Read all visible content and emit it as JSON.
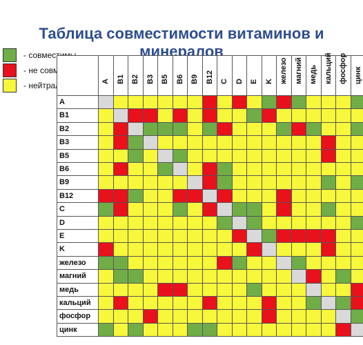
{
  "title": "Таблица совместимости витаминов и минералов",
  "legend": [
    {
      "label": "- совместимы",
      "color": "#70ad47"
    },
    {
      "label": "- не совместимы",
      "color": "#e8111c"
    },
    {
      "label": "- нейтральны",
      "color": "#f7f73b"
    }
  ],
  "colors": {
    "g": "#70ad47",
    "r": "#e8111c",
    "y": "#f7f73b",
    "x": "#d9d9d9"
  },
  "columns": [
    "A",
    "B1",
    "B2",
    "B3",
    "B5",
    "B6",
    "B9",
    "B12",
    "C",
    "D",
    "E",
    "K",
    "железо",
    "магний",
    "медь",
    "кальций",
    "фосфор",
    "цинк"
  ],
  "rows": [
    "A",
    "B1",
    "B2",
    "B3",
    "B5",
    "B6",
    "B9",
    "B12",
    "C",
    "D",
    "E",
    "K",
    "железо",
    "магний",
    "медь",
    "кальций",
    "фосфор",
    "цинк"
  ],
  "matrix": [
    "xyyyyyyryrygrgyyyg",
    "yxrryryryygryyyyyy",
    "yrxgggygryyygrgyyg",
    "yrgxyyyyyyyyyyyryy",
    "yygyxgyyyyyyyyyryy",
    "yryygxyrgyyyyyyyyy",
    "yyyyyyxrgyyyyyygyg",
    "rrgyyrrxryyyryyyyy",
    "gryyygyrxggyryygyy",
    "yyyyyyyygxgyyyyyyg",
    "yyyyyyyyyrxgrrrryy",
    "ryyyyyyyyyrxyyyryy",
    "ggyyyyyyrgyyxgyyyy",
    "yggyyyyyyyyyyxrygy",
    "yyyyrryyyygyyyxyyr",
    "yryyyyyryyyryygxgr",
    "yyyryyyyyyyryyyyxg",
    "gygyyyggyyyyyyyyrx"
  ]
}
